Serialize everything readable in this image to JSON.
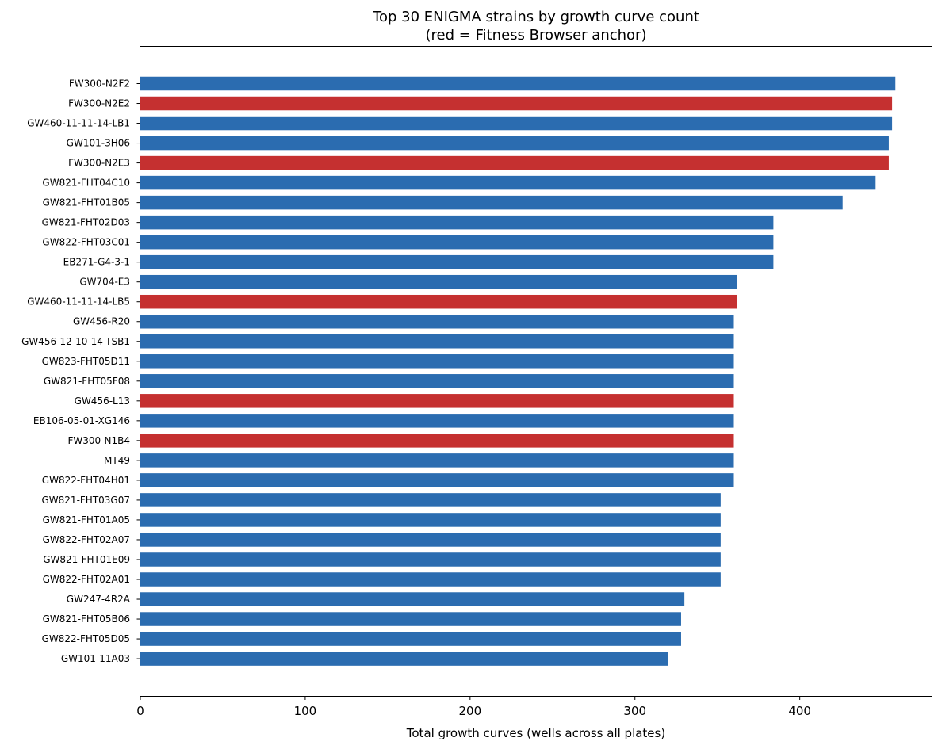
{
  "chart_data": {
    "type": "bar",
    "orientation": "horizontal",
    "title": "Top 30 ENIGMA strains by growth curve count",
    "subtitle": "(red = Fitness Browser anchor)",
    "xlabel": "Total growth curves (wells across all plates)",
    "ylabel": "",
    "xlim": [
      0,
      480
    ],
    "xticks": [
      0,
      100,
      200,
      300,
      400
    ],
    "grid": false,
    "colors": {
      "default": "#2b6cb0",
      "anchor": "#c53030"
    },
    "categories": [
      "FW300-N2F2",
      "FW300-N2E2",
      "GW460-11-11-14-LB1",
      "GW101-3H06",
      "FW300-N2E3",
      "GW821-FHT04C10",
      "GW821-FHT01B05",
      "GW821-FHT02D03",
      "GW822-FHT03C01",
      "EB271-G4-3-1",
      "GW704-E3",
      "GW460-11-11-14-LB5",
      "GW456-R20",
      "GW456-12-10-14-TSB1",
      "GW823-FHT05D11",
      "GW821-FHT05F08",
      "GW456-L13",
      "EB106-05-01-XG146",
      "FW300-N1B4",
      "MT49",
      "GW822-FHT04H01",
      "GW821-FHT03G07",
      "GW821-FHT01A05",
      "GW822-FHT02A07",
      "GW821-FHT01E09",
      "GW822-FHT02A01",
      "GW247-4R2A",
      "GW821-FHT05B06",
      "GW822-FHT05D05",
      "GW101-11A03"
    ],
    "values": [
      458,
      456,
      456,
      454,
      454,
      446,
      426,
      384,
      384,
      384,
      362,
      362,
      360,
      360,
      360,
      360,
      360,
      360,
      360,
      360,
      360,
      352,
      352,
      352,
      352,
      352,
      330,
      328,
      328,
      320
    ],
    "anchor": [
      false,
      true,
      false,
      false,
      true,
      false,
      false,
      false,
      false,
      false,
      false,
      true,
      false,
      false,
      false,
      false,
      true,
      false,
      true,
      false,
      false,
      false,
      false,
      false,
      false,
      false,
      false,
      false,
      false,
      false
    ]
  }
}
